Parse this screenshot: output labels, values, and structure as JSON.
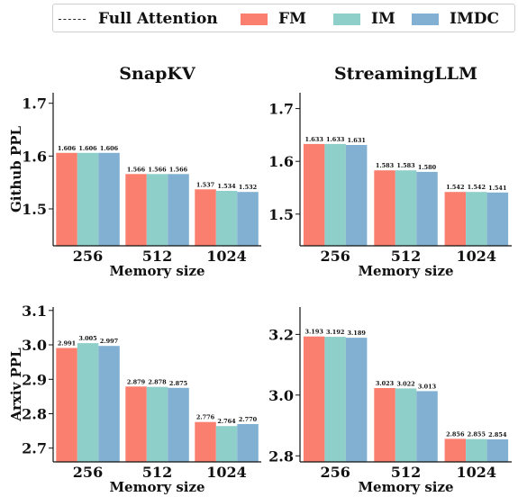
{
  "legend": {
    "items": [
      {
        "label": "Full Attention",
        "style": "dashed",
        "color": "#222222"
      },
      {
        "label": "FM",
        "style": "patch",
        "color": "#FA7F6F"
      },
      {
        "label": "IM",
        "style": "patch",
        "color": "#8ECFC9"
      },
      {
        "label": "IMDC",
        "style": "patch",
        "color": "#82B0D2"
      }
    ]
  },
  "chart_data": [
    {
      "type": "bar",
      "title": "SnapKV",
      "xlabel": "Memory size",
      "ylabel": "Github PPL",
      "categories": [
        "256",
        "512",
        "1024"
      ],
      "ylim": [
        1.43,
        1.72
      ],
      "yticks": [
        "1.5",
        "1.6",
        "1.7"
      ],
      "series": [
        {
          "name": "FM",
          "values": [
            1.606,
            1.566,
            1.537
          ],
          "labels": [
            "1.606",
            "1.566",
            "1.537"
          ]
        },
        {
          "name": "IM",
          "values": [
            1.606,
            1.566,
            1.534
          ],
          "labels": [
            "1.606",
            "1.566",
            "1.534"
          ]
        },
        {
          "name": "IMDC",
          "values": [
            1.606,
            1.566,
            1.532
          ],
          "labels": [
            "1.606",
            "1.566",
            "1.532"
          ]
        }
      ]
    },
    {
      "type": "bar",
      "title": "StreamingLLM",
      "xlabel": "Memory size",
      "ylabel": "",
      "categories": [
        "256",
        "512",
        "1024"
      ],
      "ylim": [
        1.44,
        1.73
      ],
      "yticks": [
        "1.5",
        "1.6",
        "1.7"
      ],
      "series": [
        {
          "name": "FM",
          "values": [
            1.633,
            1.583,
            1.542
          ],
          "labels": [
            "1.633",
            "1.583",
            "1.542"
          ]
        },
        {
          "name": "IM",
          "values": [
            1.633,
            1.583,
            1.542
          ],
          "labels": [
            "1.633",
            "1.583",
            "1.542"
          ]
        },
        {
          "name": "IMDC",
          "values": [
            1.631,
            1.58,
            1.541
          ],
          "labels": [
            "1.631",
            "1.580",
            "1.541"
          ]
        }
      ]
    },
    {
      "type": "bar",
      "title": "",
      "xlabel": "Memory size",
      "ylabel": "Arxiv PPL",
      "categories": [
        "256",
        "512",
        "1024"
      ],
      "ylim": [
        2.66,
        3.11
      ],
      "yticks": [
        "2.7",
        "2.8",
        "2.9",
        "3.0",
        "3.1"
      ],
      "series": [
        {
          "name": "FM",
          "values": [
            2.991,
            2.879,
            2.776
          ],
          "labels": [
            "2.991",
            "2.879",
            "2.776"
          ]
        },
        {
          "name": "IM",
          "values": [
            3.005,
            2.878,
            2.764
          ],
          "labels": [
            "3.005",
            "2.878",
            "2.764"
          ]
        },
        {
          "name": "IMDC",
          "values": [
            2.997,
            2.875,
            2.77
          ],
          "labels": [
            "2.997",
            "2.875",
            "2.770"
          ]
        }
      ]
    },
    {
      "type": "bar",
      "title": "",
      "xlabel": "Memory size",
      "ylabel": "",
      "categories": [
        "256",
        "512",
        "1024"
      ],
      "ylim": [
        2.78,
        3.29
      ],
      "yticks": [
        "2.8",
        "3.0",
        "3.2"
      ],
      "series": [
        {
          "name": "FM",
          "values": [
            3.193,
            3.023,
            2.856
          ],
          "labels": [
            "3.193",
            "3.023",
            "2.856"
          ]
        },
        {
          "name": "IM",
          "values": [
            3.192,
            3.022,
            2.855
          ],
          "labels": [
            "3.192",
            "3.022",
            "2.855"
          ]
        },
        {
          "name": "IMDC",
          "values": [
            3.189,
            3.013,
            2.854
          ],
          "labels": [
            "3.189",
            "3.013",
            "2.854"
          ]
        }
      ]
    }
  ]
}
